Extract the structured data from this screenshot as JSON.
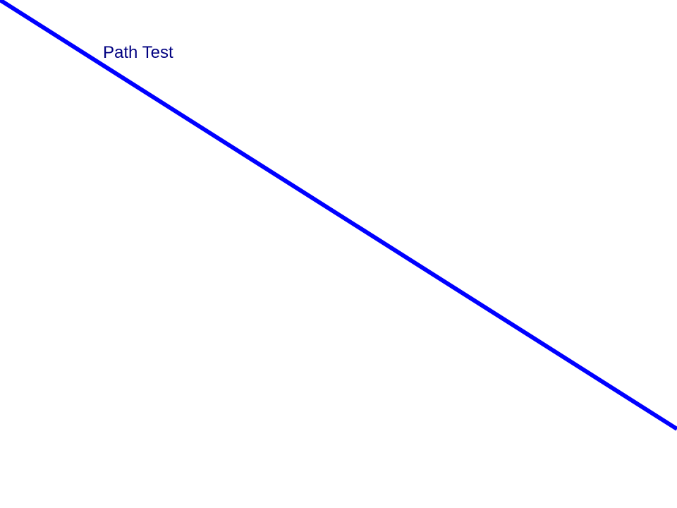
{
  "title": "Path Test",
  "colors": {
    "title": "#000080",
    "line": "#0000ff",
    "background": "#ffffff"
  }
}
